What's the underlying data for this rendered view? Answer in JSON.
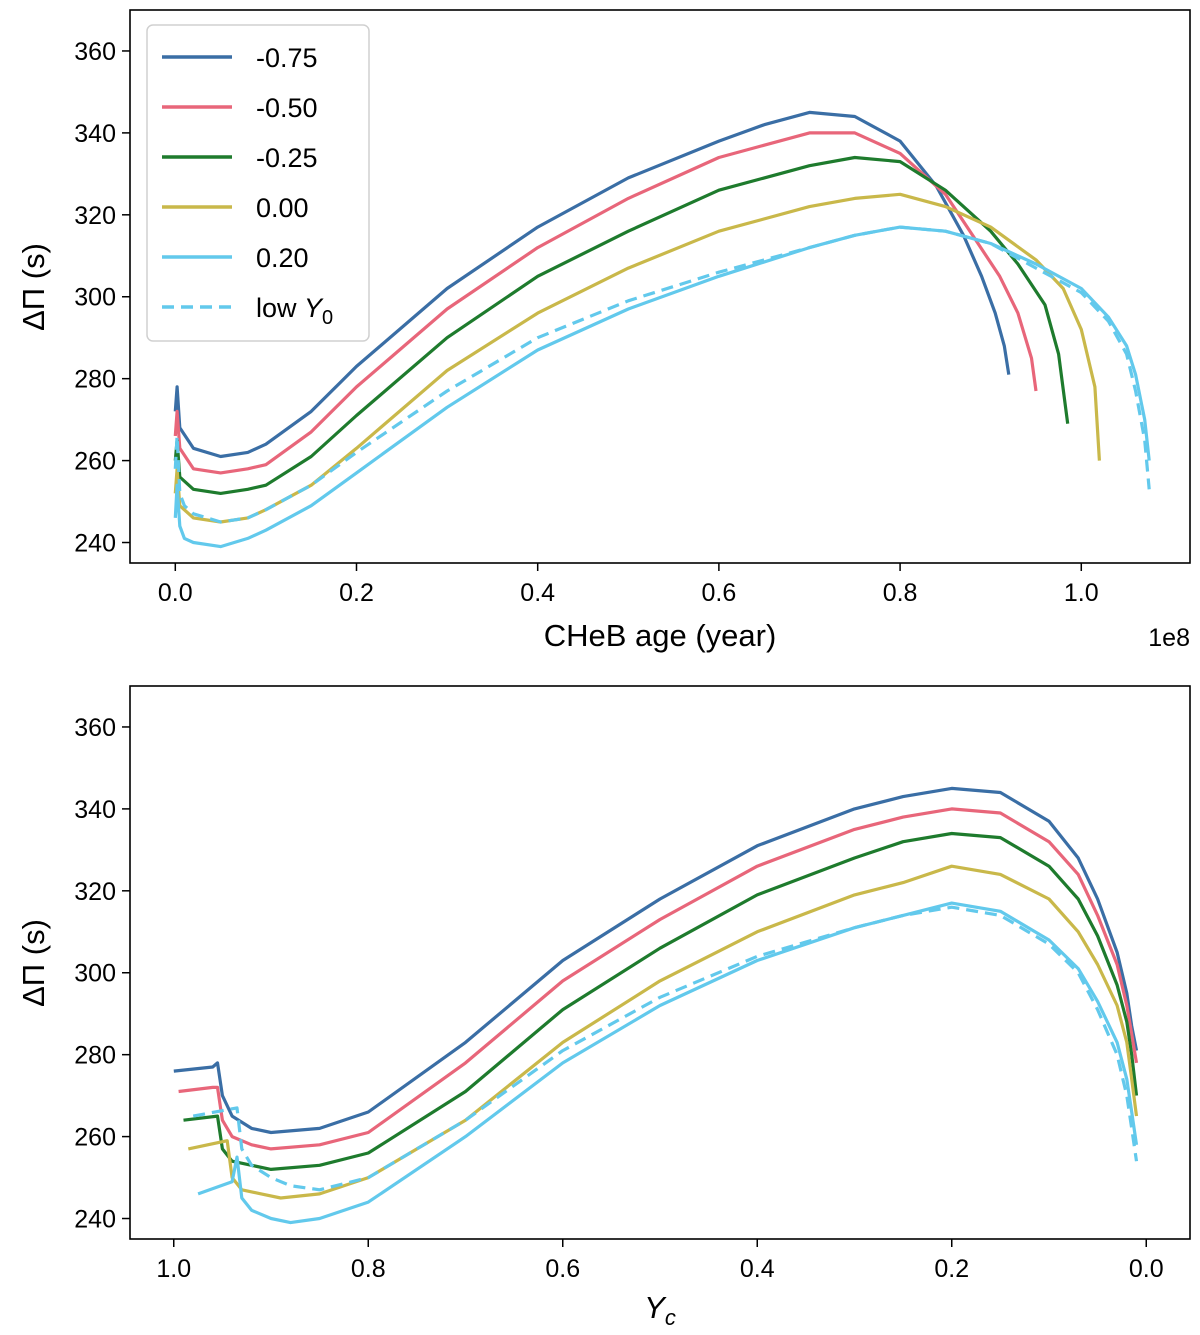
{
  "colors": {
    "-0.75": "#3a6ea5",
    "-0.50": "#e8667a",
    "-0.25": "#1e7b2d",
    "0.00": "#c9b84a",
    "0.20": "#62c9ec"
  },
  "chart_data": [
    {
      "type": "line",
      "panel": "top",
      "xlabel": "CHeB age (year)",
      "x_offset_label": "1e8",
      "ylabel": "ΔΠ (s)",
      "xlim": [
        -0.05,
        1.12
      ],
      "ylim": [
        235,
        370
      ],
      "xticks": [
        0.0,
        0.2,
        0.4,
        0.6,
        0.8,
        1.0
      ],
      "xtick_labels": [
        "0.0",
        "0.2",
        "0.4",
        "0.6",
        "0.8",
        "1.0"
      ],
      "yticks": [
        240,
        260,
        280,
        300,
        320,
        340,
        360
      ],
      "ytick_labels": [
        "240",
        "260",
        "280",
        "300",
        "320",
        "340",
        "360"
      ],
      "legend": {
        "position": "upper-left",
        "entries": [
          {
            "label": "-0.75",
            "style": "solid",
            "color_key": "-0.75"
          },
          {
            "label": "-0.50",
            "style": "solid",
            "color_key": "-0.50"
          },
          {
            "label": "-0.25",
            "style": "solid",
            "color_key": "-0.25"
          },
          {
            "label": "0.00",
            "style": "solid",
            "color_key": "0.00"
          },
          {
            "label": "0.20",
            "style": "solid",
            "color_key": "0.20"
          },
          {
            "label": "low Y",
            "subscript": "0",
            "style": "dashed",
            "color_key": "0.20"
          }
        ]
      },
      "series": [
        {
          "name": "-0.75",
          "color_key": "-0.75",
          "dashed": false,
          "x": [
            0.0,
            0.002,
            0.005,
            0.02,
            0.05,
            0.08,
            0.1,
            0.15,
            0.2,
            0.3,
            0.4,
            0.5,
            0.6,
            0.65,
            0.7,
            0.75,
            0.8,
            0.84,
            0.87,
            0.89,
            0.905,
            0.915,
            0.92
          ],
          "y": [
            272,
            278,
            268,
            263,
            261,
            262,
            264,
            272,
            283,
            302,
            317,
            329,
            338,
            342,
            345,
            344,
            338,
            327,
            315,
            305,
            296,
            288,
            281
          ]
        },
        {
          "name": "-0.50",
          "color_key": "-0.50",
          "dashed": false,
          "x": [
            0.0,
            0.002,
            0.005,
            0.02,
            0.05,
            0.08,
            0.1,
            0.15,
            0.2,
            0.3,
            0.4,
            0.5,
            0.6,
            0.65,
            0.7,
            0.75,
            0.8,
            0.85,
            0.88,
            0.91,
            0.93,
            0.945,
            0.95
          ],
          "y": [
            266,
            272,
            263,
            258,
            257,
            258,
            259,
            267,
            278,
            297,
            312,
            324,
            334,
            337,
            340,
            340,
            335,
            325,
            315,
            305,
            296,
            285,
            277
          ]
        },
        {
          "name": "-0.25",
          "color_key": "-0.25",
          "dashed": false,
          "x": [
            0.0,
            0.002,
            0.005,
            0.02,
            0.05,
            0.08,
            0.1,
            0.15,
            0.2,
            0.3,
            0.4,
            0.5,
            0.6,
            0.7,
            0.75,
            0.8,
            0.85,
            0.9,
            0.93,
            0.96,
            0.975,
            0.985
          ],
          "y": [
            260,
            265,
            256,
            253,
            252,
            253,
            254,
            261,
            271,
            290,
            305,
            316,
            326,
            332,
            334,
            333,
            326,
            316,
            308,
            298,
            286,
            269
          ]
        },
        {
          "name": "0.00",
          "color_key": "0.00",
          "dashed": false,
          "x": [
            0.0,
            0.002,
            0.005,
            0.02,
            0.05,
            0.08,
            0.1,
            0.15,
            0.2,
            0.3,
            0.4,
            0.5,
            0.6,
            0.7,
            0.75,
            0.8,
            0.85,
            0.9,
            0.95,
            0.98,
            1.0,
            1.015,
            1.02
          ],
          "y": [
            252,
            258,
            249,
            246,
            245,
            246,
            248,
            254,
            263,
            282,
            296,
            307,
            316,
            322,
            324,
            325,
            322,
            317,
            309,
            302,
            292,
            278,
            260
          ]
        },
        {
          "name": "0.20",
          "color_key": "0.20",
          "dashed": false,
          "x": [
            0.0,
            0.002,
            0.005,
            0.01,
            0.02,
            0.05,
            0.08,
            0.1,
            0.15,
            0.2,
            0.3,
            0.4,
            0.5,
            0.6,
            0.7,
            0.75,
            0.8,
            0.85,
            0.9,
            0.95,
            1.0,
            1.03,
            1.05,
            1.06,
            1.07,
            1.075
          ],
          "y": [
            246,
            254,
            244,
            241,
            240,
            239,
            241,
            243,
            249,
            257,
            273,
            287,
            297,
            305,
            312,
            315,
            317,
            316,
            313,
            308,
            302,
            295,
            288,
            281,
            270,
            260
          ]
        },
        {
          "name": "low Y0",
          "color_key": "0.20",
          "dashed": true,
          "x": [
            0.0,
            0.002,
            0.005,
            0.01,
            0.02,
            0.05,
            0.08,
            0.1,
            0.15,
            0.2,
            0.3,
            0.4,
            0.5,
            0.6,
            0.7,
            0.75,
            0.8,
            0.85,
            0.9,
            0.95,
            1.0,
            1.03,
            1.05,
            1.06,
            1.07,
            1.075
          ],
          "y": [
            258,
            266,
            252,
            249,
            247,
            245,
            246,
            248,
            254,
            262,
            277,
            290,
            299,
            306,
            312,
            315,
            317,
            316,
            313,
            307,
            301,
            294,
            286,
            277,
            265,
            253
          ]
        }
      ]
    },
    {
      "type": "line",
      "panel": "bottom",
      "xlabel": "Y",
      "xlabel_subscript": "c",
      "ylabel": "ΔΠ (s)",
      "xlim": [
        1.045,
        -0.045
      ],
      "ylim": [
        235,
        370
      ],
      "xticks": [
        1.0,
        0.8,
        0.6,
        0.4,
        0.2,
        0.0
      ],
      "xtick_labels": [
        "1.0",
        "0.8",
        "0.6",
        "0.4",
        "0.2",
        "0.0"
      ],
      "yticks": [
        240,
        260,
        280,
        300,
        320,
        340,
        360
      ],
      "ytick_labels": [
        "240",
        "260",
        "280",
        "300",
        "320",
        "340",
        "360"
      ],
      "series": [
        {
          "name": "-0.75",
          "color_key": "-0.75",
          "dashed": false,
          "x": [
            1.0,
            0.96,
            0.955,
            0.95,
            0.94,
            0.92,
            0.9,
            0.85,
            0.8,
            0.7,
            0.6,
            0.5,
            0.4,
            0.3,
            0.25,
            0.2,
            0.15,
            0.1,
            0.07,
            0.05,
            0.03,
            0.02,
            0.015,
            0.01
          ],
          "y": [
            276,
            277,
            278,
            270,
            265,
            262,
            261,
            262,
            266,
            283,
            303,
            318,
            331,
            340,
            343,
            345,
            344,
            337,
            328,
            318,
            305,
            295,
            287,
            281
          ]
        },
        {
          "name": "-0.50",
          "color_key": "-0.50",
          "dashed": false,
          "x": [
            0.995,
            0.96,
            0.955,
            0.95,
            0.94,
            0.92,
            0.9,
            0.85,
            0.8,
            0.7,
            0.6,
            0.5,
            0.4,
            0.3,
            0.25,
            0.2,
            0.15,
            0.1,
            0.07,
            0.05,
            0.03,
            0.02,
            0.015,
            0.01
          ],
          "y": [
            271,
            272,
            272,
            264,
            260,
            258,
            257,
            258,
            261,
            278,
            298,
            313,
            326,
            335,
            338,
            340,
            339,
            332,
            324,
            314,
            302,
            292,
            285,
            278
          ]
        },
        {
          "name": "-0.25",
          "color_key": "-0.25",
          "dashed": false,
          "x": [
            0.99,
            0.955,
            0.95,
            0.94,
            0.92,
            0.9,
            0.85,
            0.8,
            0.7,
            0.6,
            0.5,
            0.4,
            0.3,
            0.25,
            0.2,
            0.15,
            0.1,
            0.07,
            0.05,
            0.03,
            0.02,
            0.015,
            0.01
          ],
          "y": [
            264,
            265,
            257,
            254,
            253,
            252,
            253,
            256,
            271,
            291,
            306,
            319,
            328,
            332,
            334,
            333,
            326,
            318,
            309,
            297,
            288,
            280,
            270
          ]
        },
        {
          "name": "0.00",
          "color_key": "0.00",
          "dashed": false,
          "x": [
            0.985,
            0.945,
            0.94,
            0.93,
            0.91,
            0.89,
            0.85,
            0.8,
            0.7,
            0.6,
            0.5,
            0.4,
            0.3,
            0.25,
            0.2,
            0.15,
            0.1,
            0.07,
            0.05,
            0.03,
            0.02,
            0.015,
            0.01
          ],
          "y": [
            257,
            259,
            250,
            247,
            246,
            245,
            246,
            250,
            264,
            283,
            298,
            310,
            319,
            322,
            326,
            324,
            318,
            310,
            302,
            292,
            283,
            274,
            265
          ]
        },
        {
          "name": "0.20",
          "color_key": "0.20",
          "dashed": false,
          "x": [
            0.975,
            0.94,
            0.935,
            0.93,
            0.92,
            0.9,
            0.88,
            0.85,
            0.8,
            0.7,
            0.6,
            0.5,
            0.4,
            0.3,
            0.25,
            0.2,
            0.15,
            0.1,
            0.07,
            0.05,
            0.03,
            0.02,
            0.015,
            0.01
          ],
          "y": [
            246,
            249,
            255,
            245,
            242,
            240,
            239,
            240,
            244,
            260,
            278,
            292,
            303,
            311,
            314,
            317,
            315,
            308,
            301,
            293,
            283,
            274,
            266,
            258
          ]
        },
        {
          "name": "low Y0",
          "color_key": "0.20",
          "dashed": true,
          "x": [
            0.98,
            0.935,
            0.93,
            0.92,
            0.9,
            0.88,
            0.85,
            0.8,
            0.7,
            0.6,
            0.5,
            0.4,
            0.3,
            0.25,
            0.2,
            0.15,
            0.1,
            0.07,
            0.05,
            0.03,
            0.02,
            0.015,
            0.01
          ],
          "y": [
            265,
            267,
            257,
            253,
            250,
            248,
            247,
            250,
            264,
            281,
            294,
            304,
            311,
            314,
            316,
            314,
            307,
            300,
            291,
            280,
            270,
            262,
            254
          ]
        }
      ]
    }
  ]
}
